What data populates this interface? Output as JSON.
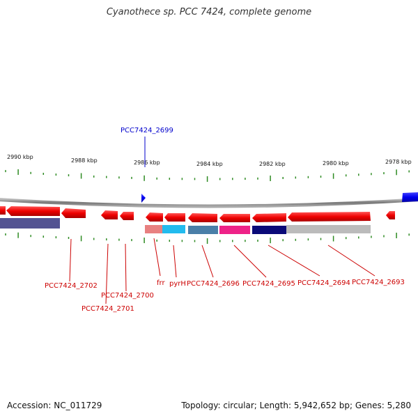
{
  "title": "Cyanothece sp. PCC 7424, complete genome",
  "colors": {
    "forward_gene": "#0000ee",
    "reverse_gene": "#ee0000",
    "backbone": "#888888",
    "tick": "#2e8b22",
    "label_blue": "#0000cc",
    "label_red": "#cc0000"
  },
  "scale_labels": [
    "2990 kbp",
    "2988 kbp",
    "2986 kbp",
    "2984 kbp",
    "2982 kbp",
    "2980 kbp",
    "2978 kbp"
  ],
  "genes": [
    {
      "name": "PCC7424_2699",
      "strand": "forward",
      "color": "#0000ee"
    },
    {
      "name": "PCC7424_2702",
      "strand": "reverse",
      "color": "#cc0000"
    },
    {
      "name": "PCC7424_2701",
      "strand": "reverse",
      "color": "#cc0000"
    },
    {
      "name": "PCC7424_2700",
      "strand": "reverse",
      "color": "#cc0000"
    },
    {
      "name": "frr",
      "strand": "reverse",
      "color": "#cc0000"
    },
    {
      "name": "pyrH",
      "strand": "reverse",
      "color": "#cc0000"
    },
    {
      "name": "PCC7424_2696",
      "strand": "reverse",
      "color": "#cc0000"
    },
    {
      "name": "PCC7424_2695",
      "strand": "reverse",
      "color": "#cc0000"
    },
    {
      "name": "PCC7424_2694",
      "strand": "reverse",
      "color": "#cc0000"
    },
    {
      "name": "PCC7424_2693",
      "strand": "reverse",
      "color": "#cc0000"
    }
  ],
  "footer": {
    "accession": "Accession: NC_011729",
    "summary": "Topology: circular; Length: 5,942,652 bp; Genes: 5,280"
  }
}
